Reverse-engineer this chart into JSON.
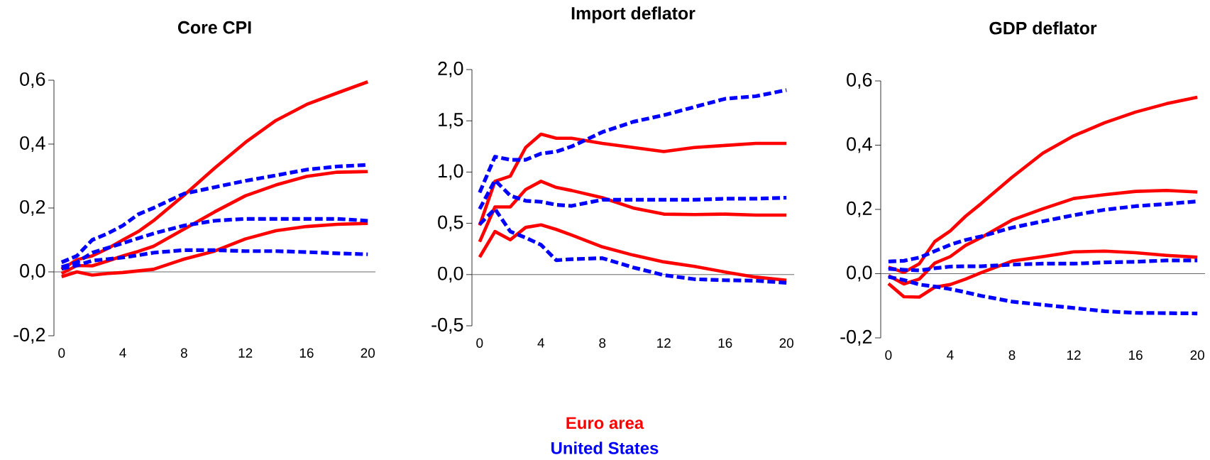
{
  "chart_data": [
    {
      "type": "line",
      "title": "Core CPI",
      "ref_lines": [
        {
          "axis": "y",
          "value": 0,
          "color": "#666666"
        }
      ],
      "x": [
        0,
        1,
        2,
        3,
        4,
        5,
        6,
        8,
        10,
        12,
        14,
        16,
        18,
        20
      ],
      "xlim": [
        -0.5,
        20.5
      ],
      "xticks": [
        0,
        4,
        8,
        12,
        16,
        20
      ],
      "ylim": [
        -0.2,
        0.6
      ],
      "yticks": [
        {
          "value": -0.2,
          "label": "-0,2"
        },
        {
          "value": 0,
          "label": "0,0"
        },
        {
          "value": 0.2,
          "label": "0,2"
        },
        {
          "value": 0.4,
          "label": "0,4"
        },
        {
          "value": 0.6,
          "label": "0,6"
        }
      ],
      "marker": "none",
      "grid": false,
      "series": [
        {
          "color": "#ff0000",
          "line_style": "solid",
          "values": [
            0.008,
            0.038,
            0.05,
            0.073,
            0.1,
            0.126,
            0.16,
            0.24,
            0.325,
            0.405,
            0.474,
            0.524,
            0.56,
            0.595
          ]
        },
        {
          "color": "#ff0000",
          "line_style": "solid",
          "values": [
            -0.005,
            0.02,
            0.019,
            0.034,
            0.05,
            0.064,
            0.08,
            0.134,
            0.188,
            0.238,
            0.272,
            0.299,
            0.312,
            0.314
          ]
        },
        {
          "color": "#ff0000",
          "line_style": "solid",
          "values": [
            -0.015,
            0.0,
            -0.01,
            -0.005,
            -0.002,
            0.003,
            0.008,
            0.04,
            0.065,
            0.103,
            0.129,
            0.142,
            0.149,
            0.152
          ]
        },
        {
          "color": "#0000ff",
          "line_style": "dashed",
          "values": [
            0.03,
            0.05,
            0.1,
            0.12,
            0.145,
            0.18,
            0.2,
            0.245,
            0.265,
            0.285,
            0.302,
            0.32,
            0.33,
            0.335
          ]
        },
        {
          "color": "#0000ff",
          "line_style": "dashed",
          "values": [
            0.015,
            0.03,
            0.06,
            0.075,
            0.09,
            0.105,
            0.12,
            0.145,
            0.16,
            0.166,
            0.166,
            0.166,
            0.166,
            0.16
          ]
        },
        {
          "color": "#0000ff",
          "line_style": "dashed",
          "values": [
            0.01,
            0.02,
            0.035,
            0.04,
            0.045,
            0.052,
            0.06,
            0.068,
            0.068,
            0.065,
            0.065,
            0.062,
            0.058,
            0.055
          ]
        }
      ]
    },
    {
      "type": "line",
      "title": "Import deflator",
      "ref_lines": [
        {
          "axis": "y",
          "value": 0,
          "color": "#666666"
        }
      ],
      "x": [
        0,
        1,
        2,
        3,
        4,
        5,
        6,
        8,
        10,
        12,
        14,
        16,
        18,
        20
      ],
      "xlim": [
        -0.5,
        20.5
      ],
      "xticks": [
        0,
        4,
        8,
        12,
        16,
        20
      ],
      "ylim": [
        -0.5,
        2.0
      ],
      "yticks": [
        {
          "value": -0.5,
          "label": "-0,5"
        },
        {
          "value": 0,
          "label": "0,0"
        },
        {
          "value": 0.5,
          "label": "0,5"
        },
        {
          "value": 1.0,
          "label": "1,0"
        },
        {
          "value": 1.5,
          "label": "1,5"
        },
        {
          "value": 2.0,
          "label": "2,0"
        }
      ],
      "marker": "none",
      "grid": false,
      "legend": "bottom",
      "series": [
        {
          "name": "Euro area",
          "color": "#ff0000",
          "line_style": "solid",
          "values": [
            0.48,
            0.91,
            0.96,
            1.24,
            1.37,
            1.33,
            1.33,
            1.28,
            1.24,
            1.2,
            1.24,
            1.26,
            1.28,
            1.28
          ]
        },
        {
          "color": "#ff0000",
          "line_style": "solid",
          "values": [
            0.32,
            0.66,
            0.66,
            0.83,
            0.91,
            0.85,
            0.82,
            0.75,
            0.65,
            0.59,
            0.585,
            0.59,
            0.58,
            0.58
          ]
        },
        {
          "color": "#ff0000",
          "line_style": "solid",
          "values": [
            0.17,
            0.42,
            0.34,
            0.46,
            0.485,
            0.44,
            0.385,
            0.27,
            0.19,
            0.124,
            0.08,
            0.025,
            -0.025,
            -0.055
          ]
        },
        {
          "name": "United States",
          "color": "#0000ff",
          "line_style": "dashed",
          "values": [
            0.8,
            1.15,
            1.12,
            1.12,
            1.18,
            1.2,
            1.25,
            1.39,
            1.49,
            1.555,
            1.635,
            1.715,
            1.74,
            1.8
          ]
        },
        {
          "color": "#0000ff",
          "line_style": "dashed",
          "values": [
            0.64,
            0.92,
            0.77,
            0.72,
            0.71,
            0.68,
            0.67,
            0.73,
            0.73,
            0.73,
            0.73,
            0.74,
            0.74,
            0.75
          ]
        },
        {
          "color": "#0000ff",
          "line_style": "dashed",
          "values": [
            0.49,
            0.64,
            0.42,
            0.36,
            0.29,
            0.14,
            0.15,
            0.16,
            0.07,
            -0.005,
            -0.045,
            -0.055,
            -0.06,
            -0.08
          ]
        }
      ]
    },
    {
      "type": "line",
      "title": "GDP deflator",
      "ref_lines": [
        {
          "axis": "y",
          "value": 0,
          "color": "#666666"
        }
      ],
      "x": [
        0,
        1,
        2,
        3,
        4,
        5,
        6,
        8,
        10,
        12,
        14,
        16,
        18,
        20
      ],
      "xlim": [
        -0.5,
        20.5
      ],
      "xticks": [
        0,
        4,
        8,
        12,
        16,
        20
      ],
      "ylim": [
        -0.2,
        0.6
      ],
      "yticks": [
        {
          "value": -0.2,
          "label": "-0,2"
        },
        {
          "value": 0,
          "label": "0,0"
        },
        {
          "value": 0.2,
          "label": "0,2"
        },
        {
          "value": 0.4,
          "label": "0,4"
        },
        {
          "value": 0.6,
          "label": "0,6"
        }
      ],
      "marker": "none",
      "grid": false,
      "series": [
        {
          "color": "#ff0000",
          "line_style": "solid",
          "values": [
            0.02,
            0.004,
            0.031,
            0.1,
            0.133,
            0.179,
            0.218,
            0.3,
            0.375,
            0.429,
            0.47,
            0.503,
            0.529,
            0.549
          ]
        },
        {
          "color": "#ff0000",
          "line_style": "solid",
          "values": [
            -0.006,
            -0.032,
            -0.017,
            0.033,
            0.053,
            0.088,
            0.112,
            0.167,
            0.202,
            0.234,
            0.246,
            0.256,
            0.259,
            0.254
          ]
        },
        {
          "color": "#ff0000",
          "line_style": "solid",
          "values": [
            -0.031,
            -0.072,
            -0.073,
            -0.042,
            -0.034,
            -0.017,
            0.003,
            0.039,
            0.053,
            0.068,
            0.07,
            0.065,
            0.057,
            0.051
          ]
        },
        {
          "color": "#0000ff",
          "line_style": "dashed",
          "values": [
            0.038,
            0.04,
            0.05,
            0.07,
            0.09,
            0.105,
            0.116,
            0.143,
            0.163,
            0.182,
            0.199,
            0.21,
            0.217,
            0.225
          ]
        },
        {
          "color": "#0000ff",
          "line_style": "dashed",
          "values": [
            0.015,
            0.012,
            0.01,
            0.017,
            0.022,
            0.023,
            0.023,
            0.028,
            0.031,
            0.031,
            0.035,
            0.037,
            0.041,
            0.041
          ]
        },
        {
          "color": "#0000ff",
          "line_style": "dashed",
          "values": [
            -0.01,
            -0.02,
            -0.034,
            -0.04,
            -0.048,
            -0.058,
            -0.069,
            -0.087,
            -0.097,
            -0.107,
            -0.117,
            -0.122,
            -0.123,
            -0.124
          ]
        }
      ]
    }
  ]
}
